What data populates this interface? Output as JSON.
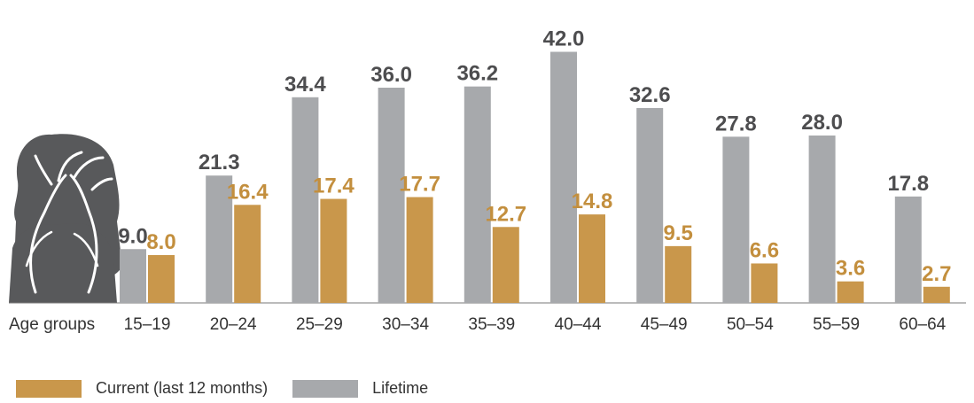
{
  "chart_data": {
    "type": "bar",
    "categories": [
      "15–19",
      "20–24",
      "25–29",
      "30–34",
      "35–39",
      "40–44",
      "45–49",
      "50–54",
      "55–59",
      "60–64"
    ],
    "xlabel": "Age groups",
    "ylim": [
      0,
      44
    ],
    "series": [
      {
        "name": "Lifetime",
        "color": "#a7a9ac",
        "label_color": "#4d4d4f",
        "values": [
          9.0,
          21.3,
          34.4,
          36.0,
          36.2,
          42.0,
          32.6,
          27.8,
          28.0,
          17.8
        ]
      },
      {
        "name": "Current (last 12 months)",
        "color": "#c9974b",
        "label_color": "#c38f3e",
        "values": [
          8.0,
          16.4,
          17.4,
          17.7,
          12.7,
          14.8,
          9.5,
          6.6,
          3.6,
          2.7
        ]
      }
    ],
    "legend_order": [
      1,
      0
    ],
    "legend_position": "bottom-left",
    "grid": false
  },
  "illustration": {
    "icon": "distressed-woman-icon",
    "color": "#58595b"
  }
}
